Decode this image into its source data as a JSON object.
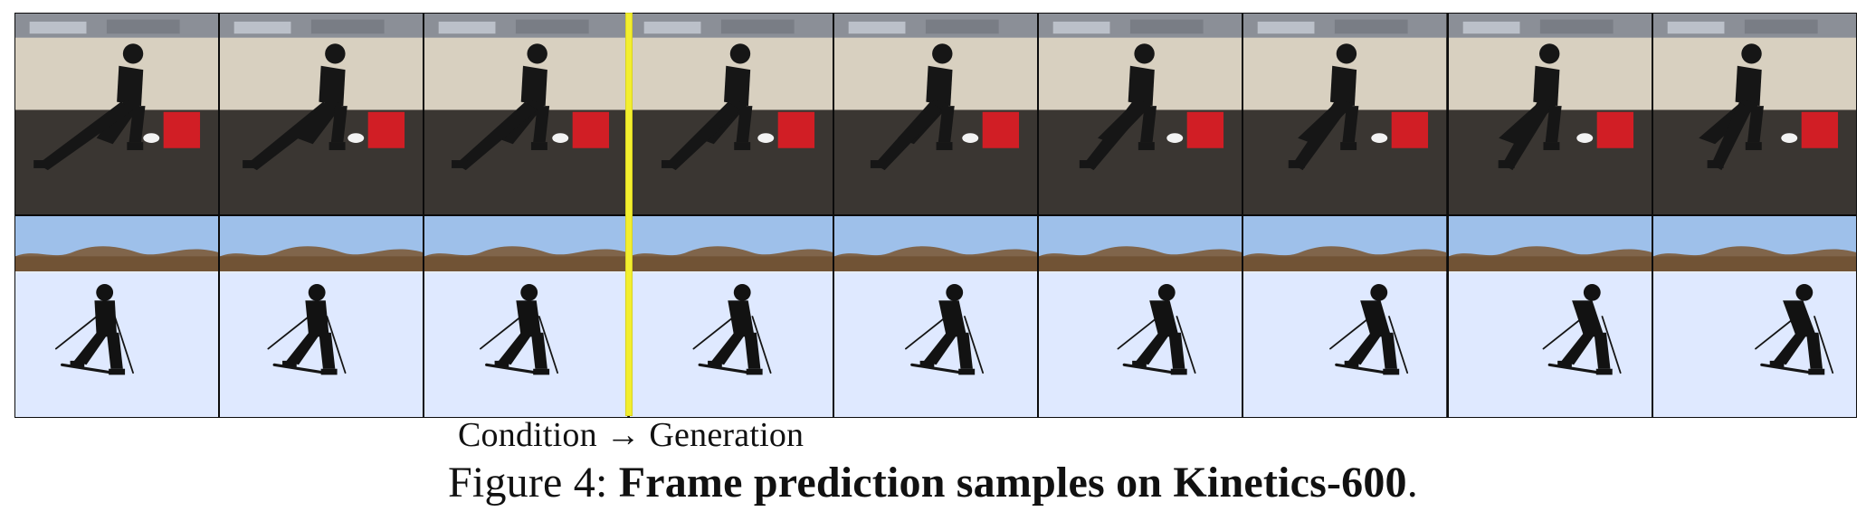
{
  "figure": {
    "condition_text": "Condition → Generation",
    "caption_prefix": "Figure 4:",
    "caption_title": "Frame prediction samples on Kinetics-600",
    "caption_suffix": "."
  },
  "rows": [
    {
      "name": "gym-lunge-row",
      "frames": [
        "lunge-frame-1",
        "lunge-frame-2",
        "lunge-frame-3",
        "lunge-frame-4",
        "lunge-frame-5",
        "lunge-frame-6",
        "lunge-frame-7",
        "lunge-frame-8",
        "lunge-frame-9"
      ]
    },
    {
      "name": "skiing-row",
      "frames": [
        "ski-frame-1",
        "ski-frame-2",
        "ski-frame-3",
        "ski-frame-4",
        "ski-frame-5",
        "ski-frame-6",
        "ski-frame-7",
        "ski-frame-8",
        "ski-frame-9"
      ]
    }
  ],
  "colors": {
    "divider": "#f2ee2f",
    "gym_wall": "#d8d0c0",
    "gym_floor": "#3a3632",
    "gym_box": "#d11e25",
    "snow_sky": "#9ec0ea",
    "snow_ground": "#dfe9ff",
    "treeline": "#7c5b3a"
  }
}
